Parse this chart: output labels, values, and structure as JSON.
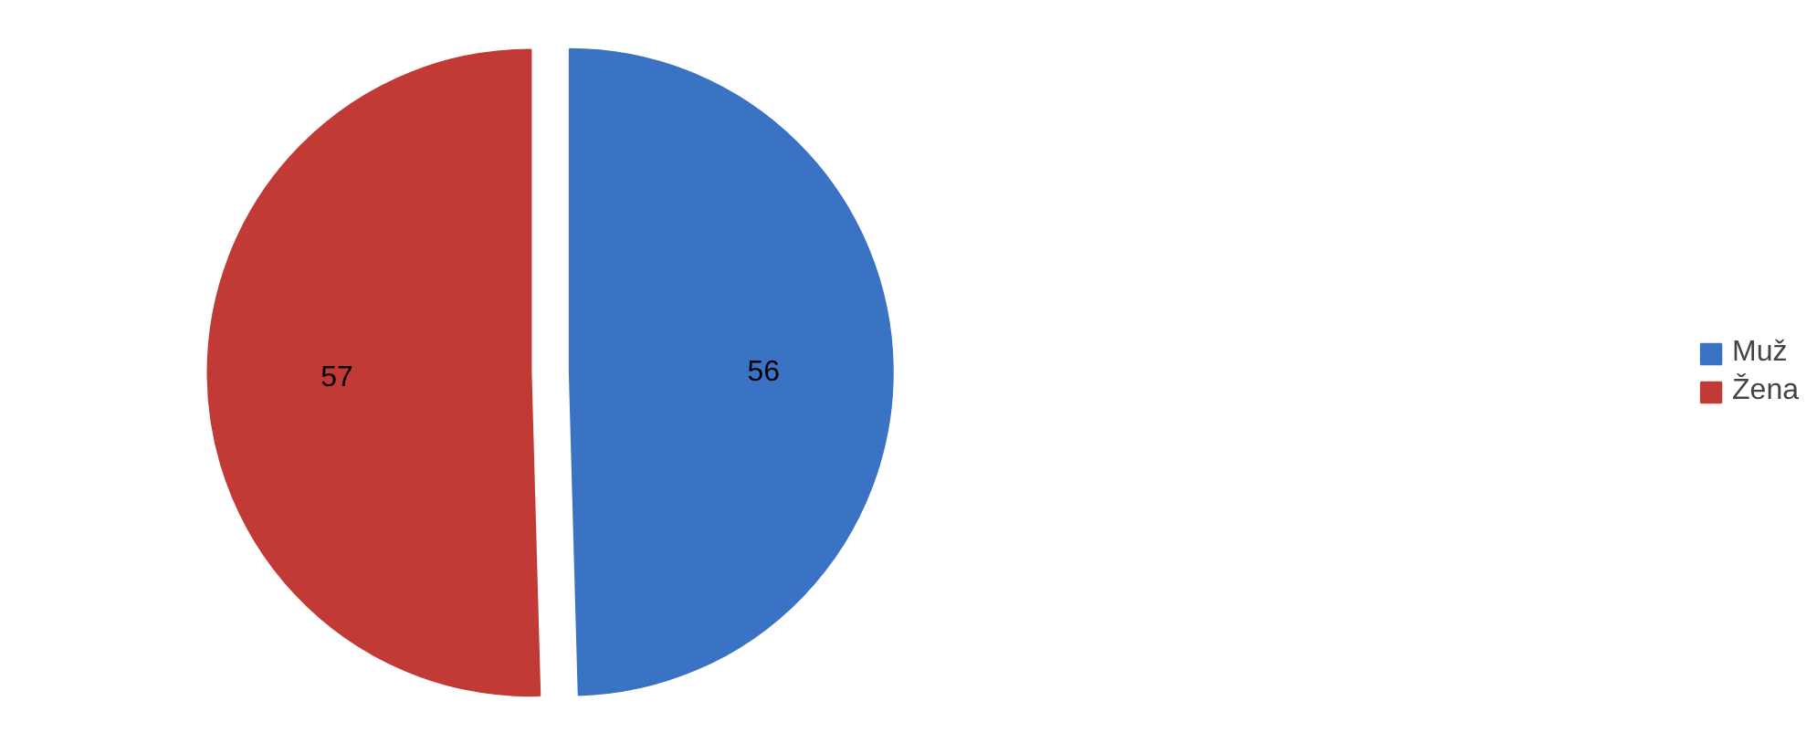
{
  "chart_data": {
    "type": "pie",
    "categories": [
      "Muž",
      "Žena"
    ],
    "values": [
      56,
      57
    ],
    "colors": [
      "#3a72c4",
      "#c23a35"
    ],
    "data_labels": true,
    "legend": "right"
  }
}
